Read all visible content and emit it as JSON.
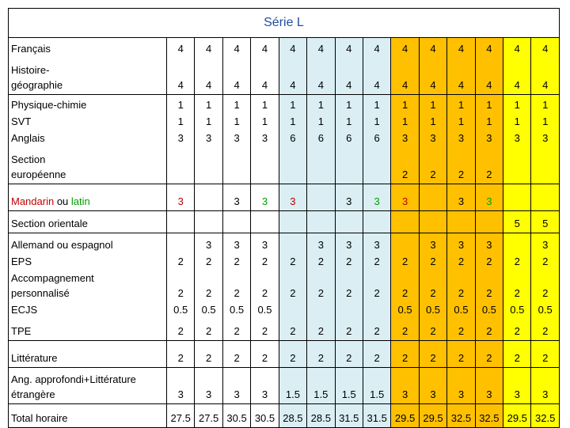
{
  "title": "Série L",
  "column_colors": [
    "#ffffff",
    "#ffffff",
    "#ffffff",
    "#ffffff",
    "#daeef3",
    "#daeef3",
    "#daeef3",
    "#daeef3",
    "#ffc000",
    "#ffc000",
    "#ffc000",
    "#ffc000",
    "#ffff00",
    "#ffff00"
  ],
  "blocks": [
    {
      "rows": [
        {
          "label": [
            "Français"
          ],
          "values": [
            4,
            4,
            4,
            4,
            4,
            4,
            4,
            4,
            4,
            4,
            4,
            4,
            4,
            4
          ]
        },
        {
          "label": [
            "Histoire-",
            "géographie"
          ],
          "values": [
            4,
            4,
            4,
            4,
            4,
            4,
            4,
            4,
            4,
            4,
            4,
            4,
            4,
            4
          ]
        }
      ]
    },
    {
      "rows": [
        {
          "label": [
            "Physique-chimie"
          ],
          "values": [
            1,
            1,
            1,
            1,
            1,
            1,
            1,
            1,
            1,
            1,
            1,
            1,
            1,
            1
          ]
        },
        {
          "label": [
            "SVT"
          ],
          "values": [
            1,
            1,
            1,
            1,
            1,
            1,
            1,
            1,
            1,
            1,
            1,
            1,
            1,
            1
          ]
        },
        {
          "label": [
            "Anglais"
          ],
          "values": [
            3,
            3,
            3,
            3,
            6,
            6,
            6,
            6,
            3,
            3,
            3,
            3,
            3,
            3
          ]
        },
        {
          "label": [
            "Section",
            "européenne"
          ],
          "values": [
            null,
            null,
            null,
            null,
            null,
            null,
            null,
            null,
            2,
            2,
            2,
            2,
            null,
            null
          ]
        }
      ]
    },
    {
      "rows": [
        {
          "label_parts": [
            {
              "text": "Mandarin",
              "color": "#c00000"
            },
            {
              "text": " ou ",
              "color": "#000000"
            },
            {
              "text": "latin",
              "color": "#00a000"
            }
          ],
          "values": [
            3,
            null,
            3,
            3,
            3,
            null,
            3,
            3,
            3,
            null,
            3,
            3,
            null,
            null
          ],
          "value_colors": [
            "#c00000",
            null,
            "#000000",
            "#00a000",
            "#c00000",
            null,
            "#000000",
            "#00a000",
            "#c00000",
            null,
            "#000000",
            "#00a000",
            null,
            null
          ]
        }
      ]
    },
    {
      "rows": [
        {
          "label": [
            "Section orientale"
          ],
          "values": [
            null,
            null,
            null,
            null,
            null,
            null,
            null,
            null,
            null,
            null,
            null,
            null,
            5,
            5
          ]
        }
      ]
    },
    {
      "rows": [
        {
          "label": [
            "Allemand ou espagnol"
          ],
          "values": [
            null,
            3,
            3,
            3,
            null,
            3,
            3,
            3,
            null,
            3,
            3,
            3,
            null,
            3
          ]
        },
        {
          "label": [
            "EPS"
          ],
          "values": [
            2,
            2,
            2,
            2,
            2,
            2,
            2,
            2,
            2,
            2,
            2,
            2,
            2,
            2
          ]
        },
        {
          "label": [
            "Accompagnement",
            "personnalisé"
          ],
          "values": [
            2,
            2,
            2,
            2,
            2,
            2,
            2,
            2,
            2,
            2,
            2,
            2,
            2,
            2
          ]
        },
        {
          "label": [
            "ECJS"
          ],
          "values": [
            0.5,
            0.5,
            0.5,
            0.5,
            null,
            null,
            null,
            null,
            0.5,
            0.5,
            0.5,
            0.5,
            0.5,
            0.5
          ]
        },
        {
          "label": [
            "TPE"
          ],
          "values": [
            2,
            2,
            2,
            2,
            2,
            2,
            2,
            2,
            2,
            2,
            2,
            2,
            2,
            2
          ]
        }
      ]
    },
    {
      "rows": [
        {
          "label": [
            "Littérature"
          ],
          "values": [
            2,
            2,
            2,
            2,
            2,
            2,
            2,
            2,
            2,
            2,
            2,
            2,
            2,
            2
          ]
        }
      ]
    },
    {
      "rows": [
        {
          "label": [
            "Ang. approfondi+Littérature",
            "étrangère"
          ],
          "values": [
            3,
            3,
            3,
            3,
            1.5,
            1.5,
            1.5,
            1.5,
            3,
            3,
            3,
            3,
            3,
            3
          ]
        }
      ]
    },
    {
      "rows": [
        {
          "label": [
            "Total horaire"
          ],
          "values": [
            27.5,
            27.5,
            30.5,
            30.5,
            28.5,
            28.5,
            31.5,
            31.5,
            29.5,
            29.5,
            32.5,
            32.5,
            29.5,
            32.5
          ]
        }
      ]
    }
  ]
}
